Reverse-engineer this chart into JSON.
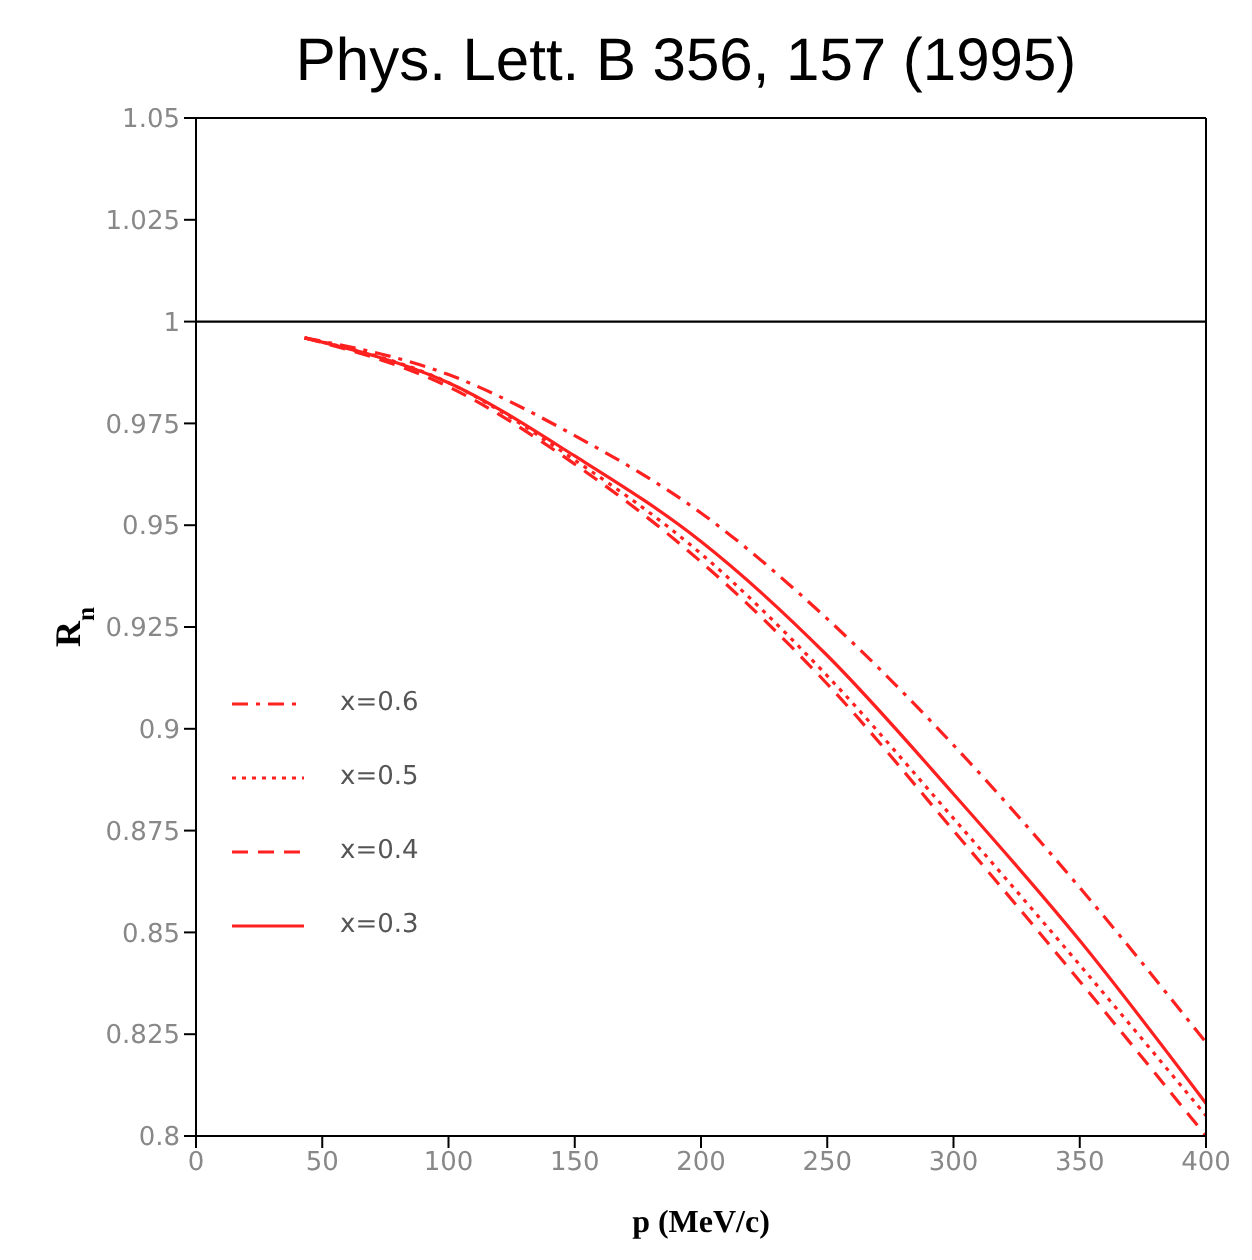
{
  "chart_data": {
    "type": "line",
    "title": "Phys. Lett. B 356, 157 (1995)",
    "xlabel": "p (MeV/c)",
    "ylabel": "R$_{n}$",
    "xlim": [
      0,
      400
    ],
    "xticks": [
      0,
      50,
      100,
      150,
      200,
      250,
      300,
      350,
      400
    ],
    "ylim": [
      0.8,
      1.05
    ],
    "yticks": [
      0.8,
      0.825,
      0.85,
      0.875,
      0.9,
      0.925,
      0.95,
      0.975,
      1,
      1.025,
      1.05
    ],
    "grid": false,
    "legend": "left",
    "marker": "none",
    "ref_lines": [
      {
        "axis": "y",
        "value": 1,
        "color": "#000000",
        "line_style": "solid"
      }
    ],
    "series": [
      {
        "name": "x=0.6",
        "color": "#ff2020",
        "line_style": "dashdot",
        "x": [
          43,
          100,
          150,
          200,
          250,
          300,
          350,
          400
        ],
        "values": [
          0.996,
          0.987,
          0.972,
          0.953,
          0.927,
          0.896,
          0.861,
          0.823
        ]
      },
      {
        "name": "x=0.5",
        "color": "#ff2020",
        "line_style": "dotted",
        "x": [
          43,
          100,
          150,
          200,
          250,
          300,
          350,
          400
        ],
        "values": [
          0.996,
          0.985,
          0.966,
          0.943,
          0.913,
          0.878,
          0.842,
          0.805
        ]
      },
      {
        "name": "x=0.4",
        "color": "#ff2020",
        "line_style": "dashed",
        "x": [
          43,
          100,
          150,
          200,
          250,
          300,
          350,
          400
        ],
        "values": [
          0.996,
          0.984,
          0.965,
          0.941,
          0.911,
          0.875,
          0.838,
          0.8
        ]
      },
      {
        "name": "x=0.3",
        "color": "#ff2020",
        "line_style": "solid",
        "x": [
          43,
          100,
          150,
          200,
          250,
          300,
          350,
          400
        ],
        "values": [
          0.996,
          0.985,
          0.967,
          0.946,
          0.918,
          0.884,
          0.848,
          0.808
        ]
      }
    ]
  }
}
